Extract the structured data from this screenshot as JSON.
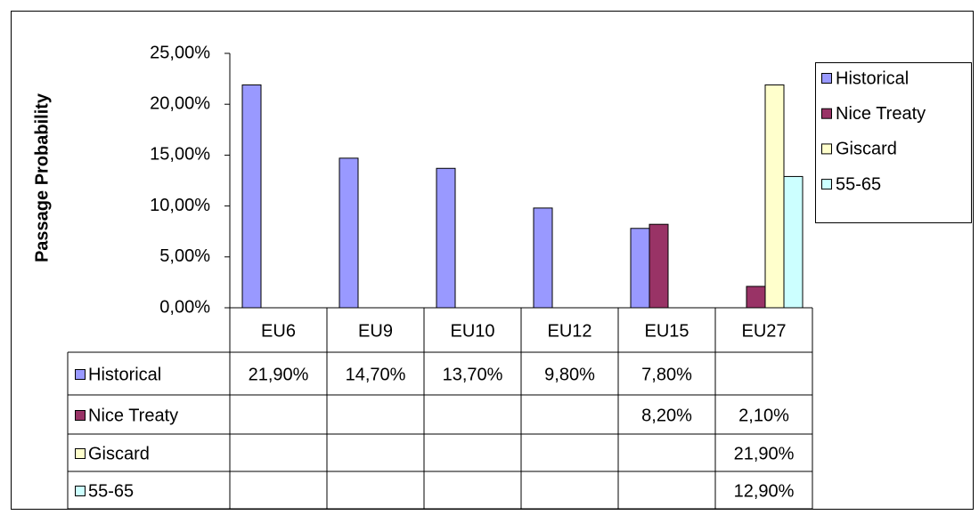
{
  "chart_data": {
    "type": "bar",
    "y_label": "Passage Probability",
    "categories": [
      "EU6",
      "EU9",
      "EU10",
      "EU12",
      "EU15",
      "EU27"
    ],
    "series": [
      {
        "name": "Historical",
        "color": "#9999ff",
        "values": [
          21.9,
          14.7,
          13.7,
          9.8,
          7.8,
          null
        ],
        "value_labels": [
          "21,90%",
          "14,70%",
          "13,70%",
          "9,80%",
          "7,80%",
          null
        ]
      },
      {
        "name": "Nice Treaty",
        "color": "#993366",
        "values": [
          null,
          null,
          null,
          null,
          8.2,
          2.1
        ],
        "value_labels": [
          null,
          null,
          null,
          null,
          "8,20%",
          "2,10%"
        ]
      },
      {
        "name": "Giscard",
        "color": "#ffffcc",
        "values": [
          null,
          null,
          null,
          null,
          null,
          21.9
        ],
        "value_labels": [
          null,
          null,
          null,
          null,
          null,
          "21,90%"
        ]
      },
      {
        "name": "55-65",
        "color": "#ccffff",
        "values": [
          null,
          null,
          null,
          null,
          null,
          12.9
        ],
        "value_labels": [
          null,
          null,
          null,
          null,
          null,
          "12,90%"
        ]
      }
    ],
    "ylim": [
      0,
      25
    ],
    "yticks": [
      {
        "value": 0,
        "label": "0,00%"
      },
      {
        "value": 5,
        "label": "5,00%"
      },
      {
        "value": 10,
        "label": "10,00%"
      },
      {
        "value": 15,
        "label": "15,00%"
      },
      {
        "value": 20,
        "label": "20,00%"
      },
      {
        "value": 25,
        "label": "25,00%"
      }
    ],
    "grid": false,
    "legend": "right"
  }
}
